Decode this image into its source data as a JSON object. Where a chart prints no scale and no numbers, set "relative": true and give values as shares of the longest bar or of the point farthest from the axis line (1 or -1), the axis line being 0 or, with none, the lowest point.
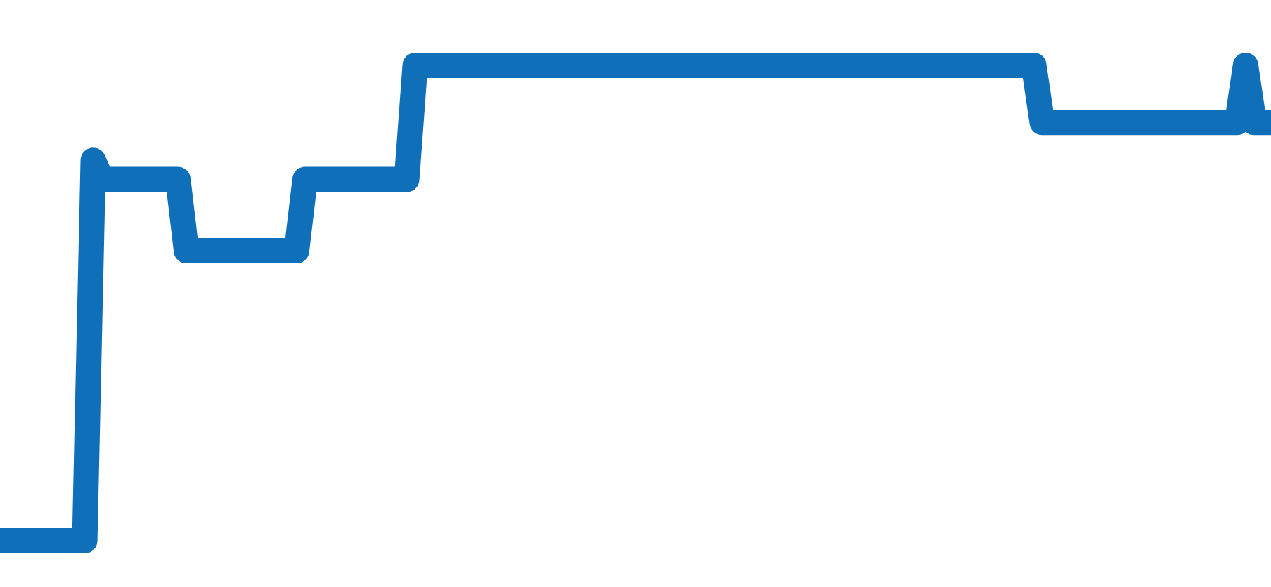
{
  "chart_data": {
    "type": "line",
    "relative": true,
    "line_style": "solid",
    "categories": [
      null,
      null,
      null,
      null,
      null,
      null,
      null,
      null,
      null,
      null,
      null,
      null,
      null,
      null,
      null,
      null,
      null,
      null,
      null,
      null,
      null,
      null,
      null,
      null,
      null,
      null,
      null,
      null,
      null,
      null,
      null,
      null,
      null,
      null,
      null,
      null,
      null,
      null,
      null,
      null,
      null,
      null,
      null,
      null,
      null,
      null,
      null,
      null,
      null,
      null,
      null,
      null,
      null,
      null,
      null,
      null,
      null,
      null,
      null,
      null,
      null,
      null,
      null,
      null,
      null,
      null,
      null,
      null,
      null,
      null,
      null,
      null,
      null,
      null,
      null,
      null,
      null,
      null,
      null,
      null,
      null,
      null,
      null,
      null,
      null,
      null,
      null,
      null,
      null,
      null,
      null,
      null,
      null,
      null,
      null,
      null,
      null,
      null,
      null,
      null,
      null,
      null,
      null,
      null,
      null,
      null,
      null,
      null,
      null,
      null,
      null,
      null,
      null,
      null,
      null,
      null,
      null,
      null,
      null,
      null,
      null,
      null,
      null,
      null,
      null,
      null,
      null,
      null,
      null,
      null,
      null,
      null,
      null,
      null,
      null,
      null,
      null,
      null,
      null,
      null,
      null,
      null,
      null,
      null,
      null,
      null,
      null,
      null,
      null,
      null,
      null
    ],
    "series": [
      {
        "color": "#0f6fb8",
        "values": [
          0,
          0,
          0,
          0,
          0,
          0,
          0,
          0,
          0,
          0,
          0,
          0.8,
          0.76,
          0.76,
          0.76,
          0.76,
          0.76,
          0.76,
          0.76,
          0.76,
          0.76,
          0.76,
          0.61,
          0.61,
          0.61,
          0.61,
          0.61,
          0.61,
          0.61,
          0.61,
          0.61,
          0.61,
          0.61,
          0.61,
          0.61,
          0.61,
          0.76,
          0.76,
          0.76,
          0.76,
          0.76,
          0.76,
          0.76,
          0.76,
          0.76,
          0.76,
          0.76,
          0.76,
          0.76,
          1,
          1,
          1,
          1,
          1,
          1,
          1,
          1,
          1,
          1,
          1,
          1,
          1,
          1,
          1,
          1,
          1,
          1,
          1,
          1,
          1,
          1,
          1,
          1,
          1,
          1,
          1,
          1,
          1,
          1,
          1,
          1,
          1,
          1,
          1,
          1,
          1,
          1,
          1,
          1,
          1,
          1,
          1,
          1,
          1,
          1,
          1,
          1,
          1,
          1,
          1,
          1,
          1,
          1,
          1,
          1,
          1,
          1,
          1,
          1,
          1,
          1,
          1,
          1,
          1,
          1,
          1,
          1,
          1,
          1,
          1,
          1,
          1,
          1,
          0.88,
          0.88,
          0.88,
          0.88,
          0.88,
          0.88,
          0.88,
          0.88,
          0.88,
          0.88,
          0.88,
          0.88,
          0.88,
          0.88,
          0.88,
          0.88,
          0.88,
          0.88,
          0.88,
          0.88,
          0.88,
          0.88,
          0.88,
          0.88,
          1,
          0.88,
          0.88,
          0.88
        ]
      }
    ]
  }
}
